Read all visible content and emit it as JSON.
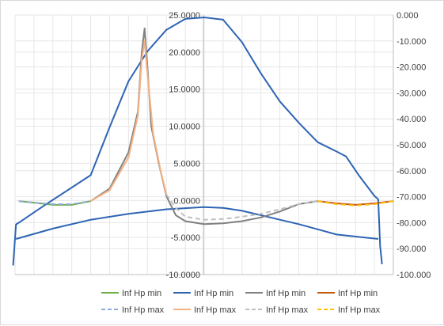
{
  "chart_data": {
    "type": "line",
    "title": "",
    "xlabel": "",
    "ylabel": "",
    "y2label": "",
    "x_categories": 20,
    "ylim": [
      -10,
      25
    ],
    "y_ticks": [
      "25.0000",
      "20.0000",
      "15.0000",
      "10.0000",
      "5.0000",
      "0.0000",
      "-5.0000",
      "-10.0000"
    ],
    "y2lim": [
      -100,
      0
    ],
    "y2_ticks": [
      "0.000",
      "-10.000",
      "-20.000",
      "-30.000",
      "-40.000",
      "-50.000",
      "-60.000",
      "-70.000",
      "-80.000",
      "-90.000",
      "-100.000"
    ],
    "grid": true,
    "legend_position": "bottom",
    "colors": {
      "green": "#70ad47",
      "blue": "#2e64b4",
      "gray": "#808080",
      "orange": "#c55a11",
      "light_blue": "#8faadc",
      "peach": "#f4b183",
      "light_gray": "#bfbfbf",
      "gold": "#ffc000",
      "grid": "#e6e6e6",
      "axis": "#bfbfbf"
    },
    "series": [
      {
        "name": "Inf Hp min",
        "color": "green",
        "dash": false,
        "axis": "primary",
        "points": [
          [
            0.2,
            -0.1
          ],
          [
            1,
            -0.3
          ],
          [
            2,
            -0.6
          ],
          [
            3,
            -0.6
          ],
          [
            4,
            -0.1
          ]
        ]
      },
      {
        "name": "Inf Hp min",
        "color": "blue",
        "dash": false,
        "axis": "secondary",
        "points": [
          [
            -0.1,
            -96.5
          ],
          [
            0.05,
            -80.7
          ],
          [
            0.2,
            -80.0
          ],
          [
            1.5,
            -73.6
          ],
          [
            4,
            -61.7
          ],
          [
            5,
            -43.2
          ],
          [
            6,
            -25.5
          ],
          [
            7,
            -14.0
          ],
          [
            8,
            -5.7
          ],
          [
            9,
            -1.5
          ],
          [
            10,
            -0.9
          ],
          [
            11,
            -1.8
          ],
          [
            12,
            -10.5
          ],
          [
            13,
            -22.5
          ],
          [
            14,
            -33.3
          ],
          [
            15,
            -41.5
          ],
          [
            16,
            -49.0
          ],
          [
            17,
            -52.6
          ],
          [
            17.5,
            -54.5
          ],
          [
            18.2,
            -62.0
          ],
          [
            19,
            -69.7
          ],
          [
            19.2,
            -71.0
          ],
          [
            19.3,
            -89.0
          ],
          [
            19.4,
            -96.0
          ]
        ]
      },
      {
        "name": "Inf Hp min",
        "color": "blue",
        "dash": false,
        "axis": "primary",
        "points": [
          [
            0.05,
            -5.2
          ],
          [
            2,
            -3.8
          ],
          [
            4,
            -2.6
          ],
          [
            6,
            -1.8
          ],
          [
            8,
            -1.2
          ],
          [
            10,
            -0.9
          ],
          [
            11,
            -1.0
          ],
          [
            12,
            -1.4
          ],
          [
            13,
            -2.0
          ],
          [
            14,
            -2.6
          ],
          [
            15,
            -3.2
          ],
          [
            16,
            -3.9
          ],
          [
            17,
            -4.6
          ],
          [
            19.2,
            -5.2
          ]
        ]
      },
      {
        "name": "Inf Hp min",
        "color": "gray",
        "dash": false,
        "axis": "primary",
        "points": [
          [
            4,
            -0.1
          ],
          [
            5,
            1.6
          ],
          [
            6,
            6.5
          ],
          [
            6.5,
            12.0
          ],
          [
            6.7,
            20.0
          ],
          [
            6.85,
            23.2
          ],
          [
            7.0,
            18.0
          ],
          [
            7.2,
            10.0
          ],
          [
            7.6,
            5.0
          ],
          [
            8,
            0.6
          ],
          [
            8.5,
            -2.0
          ],
          [
            9,
            -2.8
          ],
          [
            10,
            -3.2
          ],
          [
            11,
            -3.1
          ],
          [
            12,
            -2.8
          ],
          [
            13,
            -2.3
          ],
          [
            14,
            -1.5
          ],
          [
            15,
            -0.5
          ],
          [
            16,
            -0.1
          ]
        ]
      },
      {
        "name": "Inf Hp min",
        "color": "orange",
        "dash": false,
        "axis": "primary",
        "points": [
          [
            16,
            -0.1
          ],
          [
            17,
            -0.4
          ],
          [
            18,
            -0.6
          ],
          [
            19,
            -0.4
          ],
          [
            20,
            -0.1
          ]
        ]
      },
      {
        "name": "Inf Hp max",
        "color": "light_blue",
        "dash": true,
        "axis": "primary",
        "points": [
          [
            0.2,
            -0.1
          ],
          [
            1,
            -0.3
          ],
          [
            2,
            -0.5
          ],
          [
            3,
            -0.5
          ],
          [
            4,
            -0.1
          ]
        ]
      },
      {
        "name": "Inf Hp max",
        "color": "peach",
        "dash": false,
        "axis": "primary",
        "points": [
          [
            4,
            -0.1
          ],
          [
            5,
            1.4
          ],
          [
            6,
            5.8
          ],
          [
            6.5,
            11.5
          ],
          [
            6.7,
            19.0
          ],
          [
            6.85,
            21.5
          ],
          [
            7.0,
            17.0
          ],
          [
            7.3,
            9.0
          ],
          [
            7.7,
            4.0
          ],
          [
            8,
            0.8
          ]
        ]
      },
      {
        "name": "Inf Hp max",
        "color": "light_gray",
        "dash": true,
        "axis": "primary",
        "points": [
          [
            8,
            0.8
          ],
          [
            8.5,
            -1.0
          ],
          [
            9,
            -2.2
          ],
          [
            10,
            -2.6
          ],
          [
            11,
            -2.5
          ],
          [
            12,
            -2.2
          ],
          [
            13,
            -1.8
          ],
          [
            14,
            -1.2
          ],
          [
            15,
            -0.5
          ],
          [
            16,
            -0.1
          ]
        ]
      },
      {
        "name": "Inf Hp max",
        "color": "gold",
        "dash": true,
        "axis": "primary",
        "points": [
          [
            16,
            -0.1
          ],
          [
            17,
            -0.5
          ],
          [
            18,
            -0.7
          ],
          [
            19,
            -0.5
          ],
          [
            20,
            -0.1
          ]
        ]
      }
    ]
  }
}
